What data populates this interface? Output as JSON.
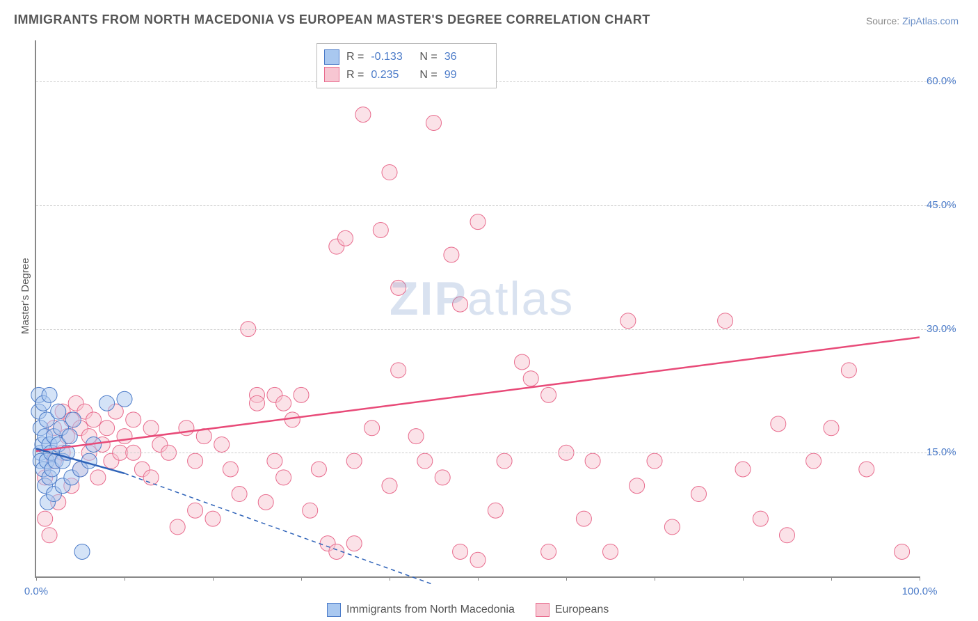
{
  "title": "IMMIGRANTS FROM NORTH MACEDONIA VS EUROPEAN MASTER'S DEGREE CORRELATION CHART",
  "source_prefix": "Source: ",
  "source_link": "ZipAtlas.com",
  "watermark": "ZIPatlas",
  "y_axis_label": "Master's Degree",
  "chart": {
    "type": "scatter",
    "background_color": "#ffffff",
    "grid_color": "#cccccc",
    "axis_color": "#888888",
    "tick_label_color": "#4a7ac8",
    "xlim": [
      0,
      100
    ],
    "ylim": [
      0,
      65
    ],
    "x_ticks": [
      0,
      10,
      20,
      30,
      40,
      50,
      60,
      70,
      80,
      90,
      100
    ],
    "x_tick_labels": {
      "0": "0.0%",
      "100": "100.0%"
    },
    "y_grid": [
      15,
      30,
      45,
      60
    ],
    "y_tick_labels": {
      "15": "15.0%",
      "30": "30.0%",
      "45": "45.0%",
      "60": "60.0%"
    },
    "marker_radius": 11,
    "marker_opacity": 0.5,
    "line_width": 2.5,
    "series": [
      {
        "name": "Immigrants from North Macedonia",
        "fill": "#a9c8f0",
        "stroke": "#4a7ac8",
        "line_color": "#2e62b8",
        "R": "-0.133",
        "N": "36",
        "trend": {
          "x1": 0,
          "y1": 15.5,
          "x2": 10,
          "y2": 12.5,
          "dash_to_x": 45,
          "dash_to_y": -1
        },
        "points": [
          [
            0.3,
            22
          ],
          [
            0.3,
            20
          ],
          [
            0.5,
            15
          ],
          [
            0.5,
            14
          ],
          [
            0.5,
            18
          ],
          [
            0.7,
            16
          ],
          [
            0.8,
            21
          ],
          [
            0.8,
            13
          ],
          [
            1.0,
            17
          ],
          [
            1.0,
            11
          ],
          [
            1.2,
            19
          ],
          [
            1.2,
            14
          ],
          [
            1.3,
            9
          ],
          [
            1.5,
            16
          ],
          [
            1.5,
            12
          ],
          [
            1.7,
            15
          ],
          [
            1.8,
            13
          ],
          [
            2.0,
            17
          ],
          [
            2.0,
            10
          ],
          [
            2.2,
            14
          ],
          [
            2.5,
            16
          ],
          [
            2.5,
            20
          ],
          [
            2.8,
            18
          ],
          [
            3.0,
            11
          ],
          [
            3.0,
            14
          ],
          [
            3.5,
            15
          ],
          [
            3.8,
            17
          ],
          [
            4.0,
            12
          ],
          [
            4.2,
            19
          ],
          [
            5.0,
            13
          ],
          [
            5.2,
            3
          ],
          [
            6.0,
            14
          ],
          [
            6.5,
            16
          ],
          [
            8.0,
            21
          ],
          [
            10.0,
            21.5
          ],
          [
            1.5,
            22
          ]
        ]
      },
      {
        "name": "Europeans",
        "fill": "#f7c6d2",
        "stroke": "#e86b8d",
        "line_color": "#e84a78",
        "R": "0.235",
        "N": "99",
        "trend": {
          "x1": 0,
          "y1": 15.2,
          "x2": 100,
          "y2": 29.0
        },
        "points": [
          [
            1,
            7
          ],
          [
            1,
            12
          ],
          [
            1.5,
            5
          ],
          [
            2,
            14
          ],
          [
            2,
            18
          ],
          [
            2.5,
            9
          ],
          [
            3,
            20
          ],
          [
            3,
            15
          ],
          [
            3.5,
            17
          ],
          [
            4,
            19
          ],
          [
            4,
            11
          ],
          [
            4.5,
            21
          ],
          [
            5,
            18
          ],
          [
            5,
            13
          ],
          [
            5.5,
            20
          ],
          [
            6,
            15
          ],
          [
            6,
            17
          ],
          [
            6.5,
            19
          ],
          [
            7,
            12
          ],
          [
            7.5,
            16
          ],
          [
            8,
            18
          ],
          [
            8.5,
            14
          ],
          [
            9,
            20
          ],
          [
            9.5,
            15
          ],
          [
            10,
            17
          ],
          [
            11,
            19
          ],
          [
            11,
            15
          ],
          [
            12,
            13
          ],
          [
            13,
            18
          ],
          [
            13,
            12
          ],
          [
            14,
            16
          ],
          [
            15,
            15
          ],
          [
            16,
            6
          ],
          [
            17,
            18
          ],
          [
            18,
            8
          ],
          [
            18,
            14
          ],
          [
            19,
            17
          ],
          [
            20,
            7
          ],
          [
            21,
            16
          ],
          [
            22,
            13
          ],
          [
            23,
            10
          ],
          [
            24,
            30
          ],
          [
            25,
            22
          ],
          [
            25,
            21
          ],
          [
            26,
            9
          ],
          [
            27,
            22
          ],
          [
            27,
            14
          ],
          [
            28,
            21
          ],
          [
            28,
            12
          ],
          [
            29,
            19
          ],
          [
            30,
            22
          ],
          [
            31,
            8
          ],
          [
            32,
            13
          ],
          [
            33,
            4
          ],
          [
            34,
            40
          ],
          [
            34,
            3
          ],
          [
            35,
            41
          ],
          [
            36,
            4
          ],
          [
            36,
            14
          ],
          [
            37,
            56
          ],
          [
            38,
            18
          ],
          [
            39,
            42
          ],
          [
            40,
            49
          ],
          [
            40,
            11
          ],
          [
            41,
            35
          ],
          [
            41,
            25
          ],
          [
            43,
            17
          ],
          [
            44,
            14
          ],
          [
            45,
            55
          ],
          [
            46,
            12
          ],
          [
            47,
            39
          ],
          [
            48,
            33
          ],
          [
            48,
            3
          ],
          [
            50,
            43
          ],
          [
            50,
            2
          ],
          [
            52,
            8
          ],
          [
            53,
            14
          ],
          [
            55,
            26
          ],
          [
            56,
            24
          ],
          [
            58,
            22
          ],
          [
            58,
            3
          ],
          [
            60,
            15
          ],
          [
            62,
            7
          ],
          [
            63,
            14
          ],
          [
            65,
            3
          ],
          [
            67,
            31
          ],
          [
            68,
            11
          ],
          [
            70,
            14
          ],
          [
            72,
            6
          ],
          [
            75,
            10
          ],
          [
            78,
            31
          ],
          [
            80,
            13
          ],
          [
            82,
            7
          ],
          [
            84,
            18.5
          ],
          [
            85,
            5
          ],
          [
            88,
            14
          ],
          [
            90,
            18
          ],
          [
            92,
            25
          ],
          [
            94,
            13
          ],
          [
            98,
            3
          ]
        ]
      }
    ]
  },
  "legend": {
    "series1_label": "Immigrants from North Macedonia",
    "series2_label": "Europeans"
  },
  "stat_labels": {
    "R": "R =",
    "N": "N ="
  }
}
